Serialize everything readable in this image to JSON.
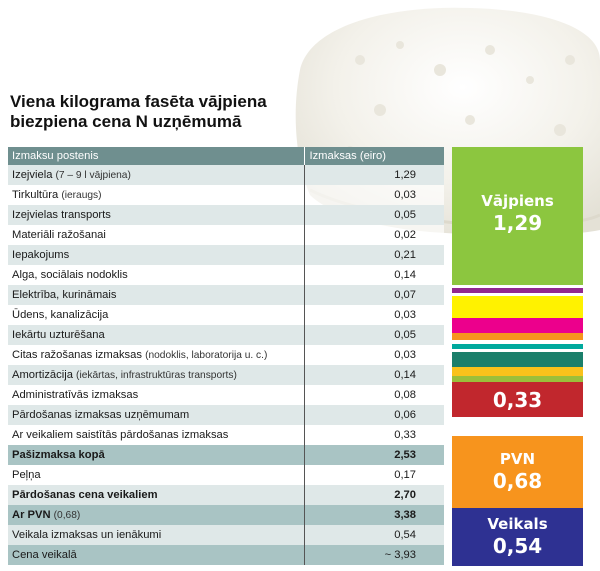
{
  "title_line1": "Viena kilograma fasēta vājpiena",
  "title_line2": "biezpiena cena N uzņēmumā",
  "table": {
    "col1_header": "Izmaksu postenis",
    "col2_header": "Izmaksas (eiro)",
    "rows": [
      {
        "label": "Izejviela",
        "note": "(7 – 9 l vājpiena)",
        "value": "1,29"
      },
      {
        "label": "Tirkultūra",
        "note": "(ieraugs)",
        "value": "0,03"
      },
      {
        "label": "Izejvielas transports",
        "note": "",
        "value": "0,05"
      },
      {
        "label": "Materiāli ražošanai",
        "note": "",
        "value": "0,02"
      },
      {
        "label": "Iepakojums",
        "note": "",
        "value": "0,21"
      },
      {
        "label": "Alga, sociālais nodoklis",
        "note": "",
        "value": "0,14"
      },
      {
        "label": "Elektrība, kurināmais",
        "note": "",
        "value": "0,07"
      },
      {
        "label": "Ūdens, kanalizācija",
        "note": "",
        "value": "0,03"
      },
      {
        "label": "Iekārtu uzturēšana",
        "note": "",
        "value": "0,05"
      },
      {
        "label": "Citas ražošanas izmaksas",
        "note": "(nodoklis, laboratorija u. c.)",
        "value": "0,03"
      },
      {
        "label": "Amortizācija",
        "note": "(iekārtas, infrastruktūras transports)",
        "value": "0,14"
      },
      {
        "label": "Administratīvās izmaksas",
        "note": "",
        "value": "0,08"
      },
      {
        "label": "Pārdošanas izmaksas uzņēmumam",
        "note": "",
        "value": "0,06"
      },
      {
        "label": "Ar veikaliem saistītās pārdošanas izmaksas",
        "note": "",
        "value": "0,33"
      },
      {
        "label": "Pašizmaksa kopā",
        "note": "",
        "value": "2,53",
        "bold": true,
        "highlight": true
      },
      {
        "label": "Peļņa",
        "note": "",
        "value": "0,17"
      },
      {
        "label": "Pārdošanas cena veikaliem",
        "note": "",
        "value": "2,70",
        "bold": true
      },
      {
        "label": "Ar PVN",
        "note": "(0,68)",
        "value": "3,38",
        "bold": true,
        "highlight": true
      },
      {
        "label": "Veikala izmaksas un ienākumi",
        "note": "",
        "value": "0,54"
      },
      {
        "label": "Cena veikalā",
        "note": "",
        "value": "~ 3,93",
        "highlight": true
      }
    ]
  },
  "chart_data": {
    "type": "bar",
    "stacked": true,
    "unit": "eiro",
    "total": 3.93,
    "segments": [
      {
        "name": "Vājpiens",
        "value": 1.29,
        "color": "#8cc63f",
        "label_value": "1,29",
        "show_label": true
      },
      {
        "name": "Tirkultūra",
        "value": 0.03,
        "color": "#ffffff",
        "show_label": false
      },
      {
        "name": "Izejvielas transports",
        "value": 0.05,
        "color": "#92278f",
        "show_label": false
      },
      {
        "name": "Materiāli ražošanai",
        "value": 0.02,
        "color": "#ffffff",
        "show_label": false
      },
      {
        "name": "Iepakojums",
        "value": 0.21,
        "color": "#fff200",
        "show_label": false
      },
      {
        "name": "Alga, sociālais nodoklis",
        "value": 0.14,
        "color": "#ec008c",
        "show_label": false
      },
      {
        "name": "Elektrība, kurināmais",
        "value": 0.07,
        "color": "#f7941d",
        "show_label": false
      },
      {
        "name": "Ūdens, kanalizācija",
        "value": 0.03,
        "color": "#ffffff",
        "show_label": false
      },
      {
        "name": "Iekārtu uzturēšana",
        "value": 0.05,
        "color": "#00a99d",
        "show_label": false
      },
      {
        "name": "Citas ražošanas izmaksas",
        "value": 0.03,
        "color": "#ffffff",
        "show_label": false
      },
      {
        "name": "Amortizācija",
        "value": 0.14,
        "color": "#1b7f6b",
        "show_label": false
      },
      {
        "name": "Administratīvās izmaksas",
        "value": 0.08,
        "color": "#f9c21b",
        "show_label": false
      },
      {
        "name": "Pārdošanas izmaksas uzņēmumam",
        "value": 0.06,
        "color": "#9bbf3a",
        "show_label": false
      },
      {
        "name": "Ar veikaliem saistītās pārdošanas izmaksas",
        "value": 0.33,
        "color": "#c1272d",
        "label_value": "0,33",
        "show_label": true
      },
      {
        "name": "Peļņa",
        "value": 0.17,
        "color": "#ffffff",
        "show_label": false
      },
      {
        "name": "PVN",
        "value": 0.68,
        "color": "#f7941d",
        "label_value": "0,68",
        "show_label": true
      },
      {
        "name": "Veikals",
        "value": 0.54,
        "color": "#2e3192",
        "label_value": "0,54",
        "show_label": true
      }
    ]
  }
}
